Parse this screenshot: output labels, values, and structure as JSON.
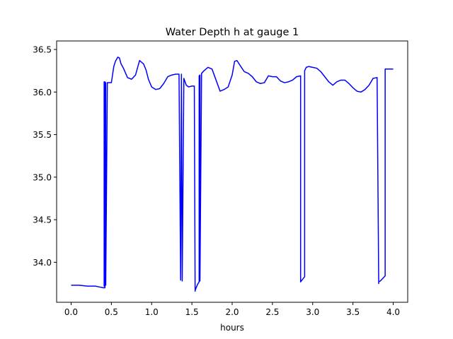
{
  "chart_data": {
    "type": "line",
    "title": "Water Depth h at gauge 1",
    "xlabel": "hours",
    "ylabel": "",
    "xlim": [
      -0.18,
      4.18
    ],
    "ylim": [
      33.53,
      36.6
    ],
    "xticks": [
      0.0,
      0.5,
      1.0,
      1.5,
      2.0,
      2.5,
      3.0,
      3.5,
      4.0
    ],
    "xtick_labels": [
      "0.0",
      "0.5",
      "1.0",
      "1.5",
      "2.0",
      "2.5",
      "3.0",
      "3.5",
      "4.0"
    ],
    "yticks": [
      34.0,
      34.5,
      35.0,
      35.5,
      36.0,
      36.5
    ],
    "ytick_labels": [
      "34.0",
      "34.5",
      "35.0",
      "35.5",
      "36.0",
      "36.5"
    ],
    "grid": false,
    "series": [
      {
        "color": "#0000ff",
        "x": [
          0.0,
          0.1,
          0.2,
          0.3,
          0.35,
          0.4,
          0.42,
          0.42,
          0.41,
          0.41,
          0.42,
          0.42,
          0.43,
          0.43,
          0.45,
          0.5,
          0.53,
          0.55,
          0.58,
          0.6,
          0.62,
          0.65,
          0.7,
          0.75,
          0.8,
          0.85,
          0.9,
          0.93,
          0.96,
          1.0,
          1.05,
          1.1,
          1.15,
          1.2,
          1.25,
          1.3,
          1.34,
          1.36,
          1.36,
          1.37,
          1.37,
          1.38,
          1.4,
          1.43,
          1.46,
          1.5,
          1.53,
          1.54,
          1.54,
          1.57,
          1.59,
          1.59,
          1.6,
          1.6,
          1.62,
          1.65,
          1.7,
          1.75,
          1.8,
          1.85,
          1.9,
          1.95,
          2.0,
          2.03,
          2.06,
          2.1,
          2.15,
          2.2,
          2.25,
          2.3,
          2.35,
          2.4,
          2.45,
          2.5,
          2.55,
          2.6,
          2.65,
          2.7,
          2.75,
          2.8,
          2.85,
          2.85,
          2.9,
          2.9,
          2.92,
          2.95,
          3.0,
          3.05,
          3.1,
          3.15,
          3.2,
          3.25,
          3.3,
          3.35,
          3.4,
          3.45,
          3.5,
          3.55,
          3.6,
          3.65,
          3.7,
          3.75,
          3.8,
          3.82,
          3.82,
          3.84,
          3.9,
          3.9,
          3.95,
          4.0
        ],
        "y": [
          33.73,
          33.73,
          33.72,
          33.72,
          33.71,
          33.7,
          33.7,
          36.12,
          36.12,
          33.72,
          33.72,
          36.11,
          36.11,
          33.73,
          36.11,
          36.11,
          36.3,
          36.36,
          36.41,
          36.4,
          36.33,
          36.28,
          36.17,
          36.15,
          36.2,
          36.37,
          36.33,
          36.26,
          36.15,
          36.06,
          36.03,
          36.04,
          36.1,
          36.18,
          36.2,
          36.21,
          36.21,
          33.79,
          33.79,
          36.21,
          36.21,
          33.78,
          36.16,
          36.08,
          36.06,
          36.07,
          36.07,
          33.66,
          33.67,
          33.74,
          33.77,
          36.19,
          36.2,
          33.78,
          36.22,
          36.25,
          36.29,
          36.27,
          36.14,
          36.01,
          36.03,
          36.06,
          36.2,
          36.36,
          36.37,
          36.31,
          36.24,
          36.22,
          36.18,
          36.12,
          36.1,
          36.11,
          36.19,
          36.18,
          36.18,
          36.13,
          36.11,
          36.12,
          36.14,
          36.18,
          36.19,
          33.77,
          33.83,
          36.25,
          36.29,
          36.3,
          36.29,
          36.28,
          36.24,
          36.18,
          36.12,
          36.08,
          36.12,
          36.14,
          36.14,
          36.1,
          36.05,
          36.01,
          36.0,
          36.03,
          36.08,
          36.16,
          36.17,
          33.75,
          33.77,
          33.78,
          33.84,
          36.27,
          36.27,
          36.27
        ]
      }
    ]
  }
}
